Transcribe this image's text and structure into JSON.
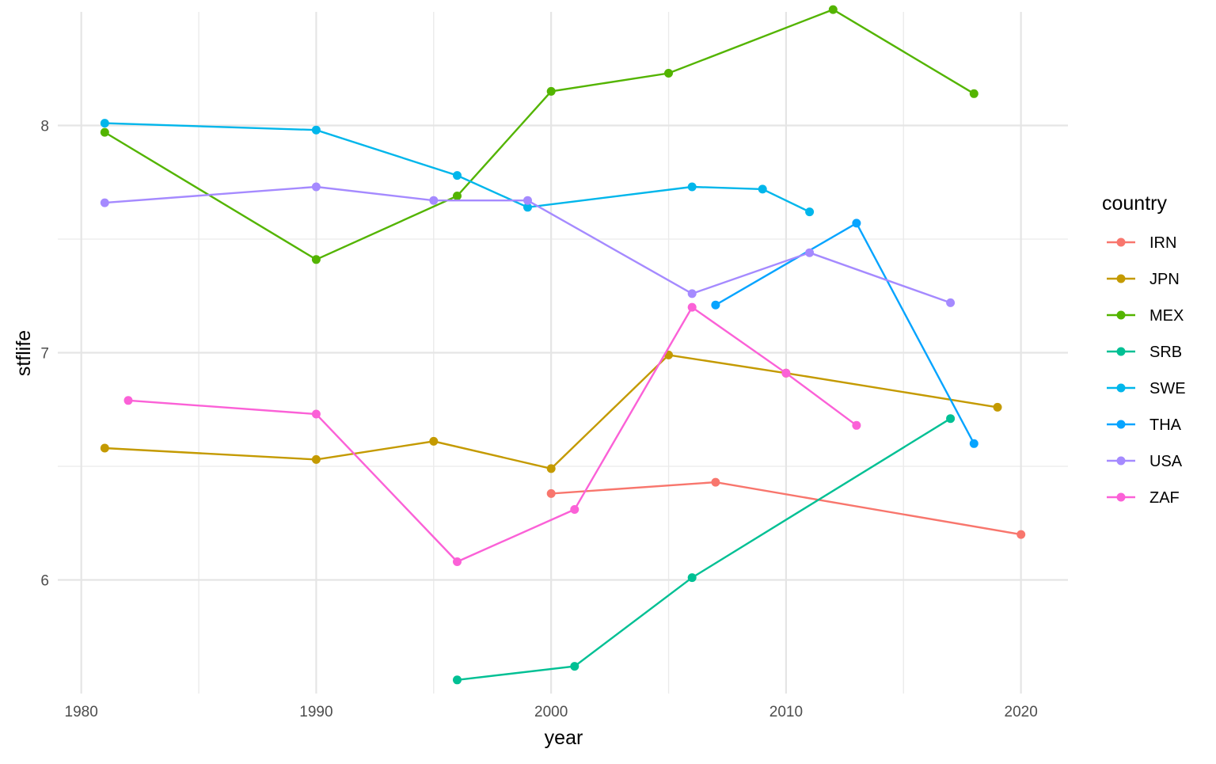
{
  "chart_data": {
    "type": "line",
    "xlabel": "year",
    "ylabel": "stflife",
    "xlim": [
      1979,
      2022
    ],
    "ylim": [
      5.5,
      8.5
    ],
    "x_ticks": [
      1980,
      1990,
      2000,
      2010,
      2020
    ],
    "y_ticks": [
      6,
      7,
      8
    ],
    "grid": true,
    "legend": {
      "title": "country",
      "position": "right"
    },
    "series": [
      {
        "name": "IRN",
        "color": "#F8766D",
        "points": [
          [
            2000,
            6.38
          ],
          [
            2007,
            6.43
          ],
          [
            2020,
            6.2
          ]
        ]
      },
      {
        "name": "JPN",
        "color": "#C49A00",
        "points": [
          [
            1981,
            6.58
          ],
          [
            1990,
            6.53
          ],
          [
            1995,
            6.61
          ],
          [
            2000,
            6.49
          ],
          [
            2005,
            6.99
          ],
          [
            2010,
            6.91
          ],
          [
            2019,
            6.76
          ]
        ]
      },
      {
        "name": "MEX",
        "color": "#53B400",
        "points": [
          [
            1981,
            7.97
          ],
          [
            1990,
            7.41
          ],
          [
            1996,
            7.69
          ],
          [
            2000,
            8.15
          ],
          [
            2005,
            8.23
          ],
          [
            2012,
            8.51
          ],
          [
            2018,
            8.14
          ]
        ]
      },
      {
        "name": "SRB",
        "color": "#00C094",
        "points": [
          [
            1996,
            5.56
          ],
          [
            2001,
            5.62
          ],
          [
            2006,
            6.01
          ],
          [
            2017,
            6.71
          ]
        ]
      },
      {
        "name": "SWE",
        "color": "#00B6EB",
        "points": [
          [
            1981,
            8.01
          ],
          [
            1990,
            7.98
          ],
          [
            1996,
            7.78
          ],
          [
            1999,
            7.64
          ],
          [
            2006,
            7.73
          ],
          [
            2009,
            7.72
          ],
          [
            2011,
            7.62
          ]
        ]
      },
      {
        "name": "THA",
        "color": "#06A4FF",
        "points": [
          [
            2007,
            7.21
          ],
          [
            2013,
            7.57
          ],
          [
            2018,
            6.6
          ]
        ]
      },
      {
        "name": "USA",
        "color": "#A58AFF",
        "points": [
          [
            1981,
            7.66
          ],
          [
            1990,
            7.73
          ],
          [
            1995,
            7.67
          ],
          [
            1999,
            7.67
          ],
          [
            2006,
            7.26
          ],
          [
            2011,
            7.44
          ],
          [
            2017,
            7.22
          ]
        ]
      },
      {
        "name": "ZAF",
        "color": "#FB61D7",
        "points": [
          [
            1982,
            6.79
          ],
          [
            1990,
            6.73
          ],
          [
            1996,
            6.08
          ],
          [
            2001,
            6.31
          ],
          [
            2006,
            7.2
          ],
          [
            2010,
            6.91
          ],
          [
            2013,
            6.68
          ]
        ]
      }
    ]
  }
}
